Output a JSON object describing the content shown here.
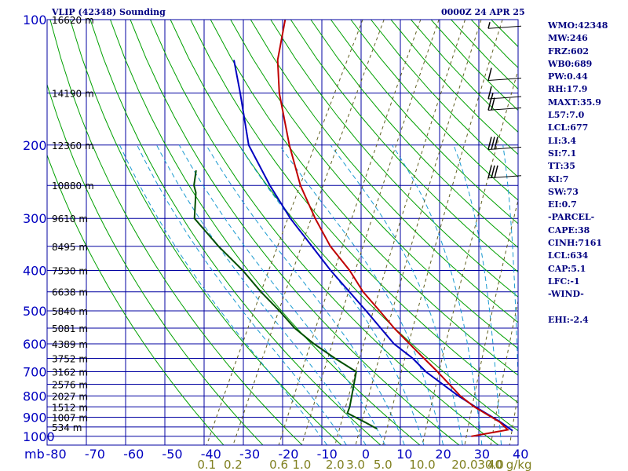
{
  "header": {
    "station_title": "VLIP (42348) Sounding",
    "time_label": "0000Z 24 APR 25"
  },
  "indices": [
    "WMO:42348",
    "MW:246",
    "FRZ:602",
    "WB0:689",
    "PW:0.44",
    "RH:17.9",
    "MAXT:35.9",
    "L57:7.0",
    "LCL:677",
    "LI:3.4",
    "SI:7.1",
    "TT:35",
    "KI:7",
    "SW:73",
    "EI:0.7",
    "-PARCEL-",
    "CAPE:38",
    "CINH:7161",
    "LCL:634",
    "CAP:5.1",
    "LFC:-1",
    "-WIND-",
    "",
    "EHI:-2.4"
  ],
  "colors": {
    "isobar": "#0000a0",
    "isotherm": "#0000a0",
    "dry_adiabat": "#00a000",
    "moist_adiabat": "#1a9ad0",
    "mixing_ratio": "#606020",
    "temperature": "#c00000",
    "parcel": "#0000c0",
    "dewpoint": "#005000",
    "axis_text": "#0000c0",
    "mixing_text": "#808020"
  },
  "chart_data": {
    "type": "line",
    "title": "VLIP (42348) Sounding",
    "xlabel": "",
    "ylabel": "mb",
    "pressure_ticks": [
      100,
      200,
      300,
      400,
      500,
      600,
      700,
      800,
      900,
      1000
    ],
    "temperature_ticks": [
      -80,
      -70,
      -60,
      -50,
      -40,
      -30,
      -20,
      -10,
      0,
      10,
      20,
      30,
      40
    ],
    "mixing_ratio_labels": [
      "0.1",
      "0.2",
      "0.6",
      "1.0",
      "2.0",
      "3.0",
      "5.0",
      "10.0",
      "20.0",
      "30.0",
      "40 g/kg"
    ],
    "mixing_ratio_values": [
      0.1,
      0.2,
      0.6,
      1.0,
      2.0,
      3.0,
      5.0,
      10.0,
      20.0,
      30.0,
      40.0
    ],
    "height_labels": [
      {
        "p": 100,
        "label": "16620 m"
      },
      {
        "p": 150,
        "label": "14190 m"
      },
      {
        "p": 200,
        "label": "12360 m"
      },
      {
        "p": 250,
        "label": "10880 m"
      },
      {
        "p": 300,
        "label": "9610 m"
      },
      {
        "p": 350,
        "label": "8495 m"
      },
      {
        "p": 400,
        "label": "7530 m"
      },
      {
        "p": 450,
        "label": "6638 m"
      },
      {
        "p": 500,
        "label": "5840 m"
      },
      {
        "p": 550,
        "label": "5081 m"
      },
      {
        "p": 600,
        "label": "4389 m"
      },
      {
        "p": 650,
        "label": "3752 m"
      },
      {
        "p": 700,
        "label": "3162 m"
      },
      {
        "p": 750,
        "label": "2576 m"
      },
      {
        "p": 800,
        "label": "2027 m"
      },
      {
        "p": 850,
        "label": "1512 m"
      },
      {
        "p": 900,
        "label": "1007 m"
      },
      {
        "p": 950,
        "label": "534 m"
      }
    ],
    "temperature_profile": [
      {
        "p": 1000,
        "t": 26.0
      },
      {
        "p": 965,
        "t": 34.5
      },
      {
        "p": 925,
        "t": 31.4
      },
      {
        "p": 850,
        "t": 22.6
      },
      {
        "p": 800,
        "t": 17.4
      },
      {
        "p": 750,
        "t": 12.9
      },
      {
        "p": 700,
        "t": 8.1
      },
      {
        "p": 650,
        "t": 2.7
      },
      {
        "p": 600,
        "t": -3.1
      },
      {
        "p": 550,
        "t": -9.3
      },
      {
        "p": 500,
        "t": -15.5
      },
      {
        "p": 450,
        "t": -22.5
      },
      {
        "p": 400,
        "t": -29.0
      },
      {
        "p": 350,
        "t": -37.4
      },
      {
        "p": 300,
        "t": -45.3
      },
      {
        "p": 250,
        "t": -53.8
      },
      {
        "p": 200,
        "t": -62.4
      },
      {
        "p": 150,
        "t": -72.4
      },
      {
        "p": 125,
        "t": -77.5
      },
      {
        "p": 100,
        "t": -81.3
      }
    ],
    "dewpoint_profile": [
      {
        "p": 960,
        "t": 0.6
      },
      {
        "p": 925,
        "t": -3.5
      },
      {
        "p": 880,
        "t": -9.3
      },
      {
        "p": 850,
        "t": -9.6
      },
      {
        "p": 700,
        "t": -12.9
      },
      {
        "p": 650,
        "t": -20.3
      },
      {
        "p": 600,
        "t": -27.8
      },
      {
        "p": 550,
        "t": -35.0
      },
      {
        "p": 500,
        "t": -41.4
      },
      {
        "p": 450,
        "t": -48.9
      },
      {
        "p": 400,
        "t": -56.6
      },
      {
        "p": 350,
        "t": -66.3
      },
      {
        "p": 300,
        "t": -76.5
      },
      {
        "p": 260,
        "t": -79.8
      },
      {
        "p": 250,
        "t": -81.3
      },
      {
        "p": 230,
        "t": -82.9
      }
    ],
    "parcel_profile": [
      {
        "p": 970,
        "t": 35.9
      },
      {
        "p": 925,
        "t": 31.6
      },
      {
        "p": 850,
        "t": 22.9
      },
      {
        "p": 800,
        "t": 16.9
      },
      {
        "p": 700,
        "t": 5.1
      },
      {
        "p": 650,
        "t": -0.2
      },
      {
        "p": 600,
        "t": -7.1
      },
      {
        "p": 500,
        "t": -19.0
      },
      {
        "p": 400,
        "t": -33.9
      },
      {
        "p": 300,
        "t": -51.7
      },
      {
        "p": 250,
        "t": -61.7
      },
      {
        "p": 200,
        "t": -72.9
      },
      {
        "p": 150,
        "t": -82.5
      },
      {
        "p": 125,
        "t": -88.8
      }
    ],
    "wind_barbs": [
      {
        "p": 105,
        "speed": 5
      },
      {
        "p": 140,
        "speed": 10
      },
      {
        "p": 155,
        "speed": 15
      },
      {
        "p": 165,
        "speed": 20
      },
      {
        "p": 205,
        "speed": 30
      },
      {
        "p": 240,
        "speed": 30
      }
    ]
  }
}
